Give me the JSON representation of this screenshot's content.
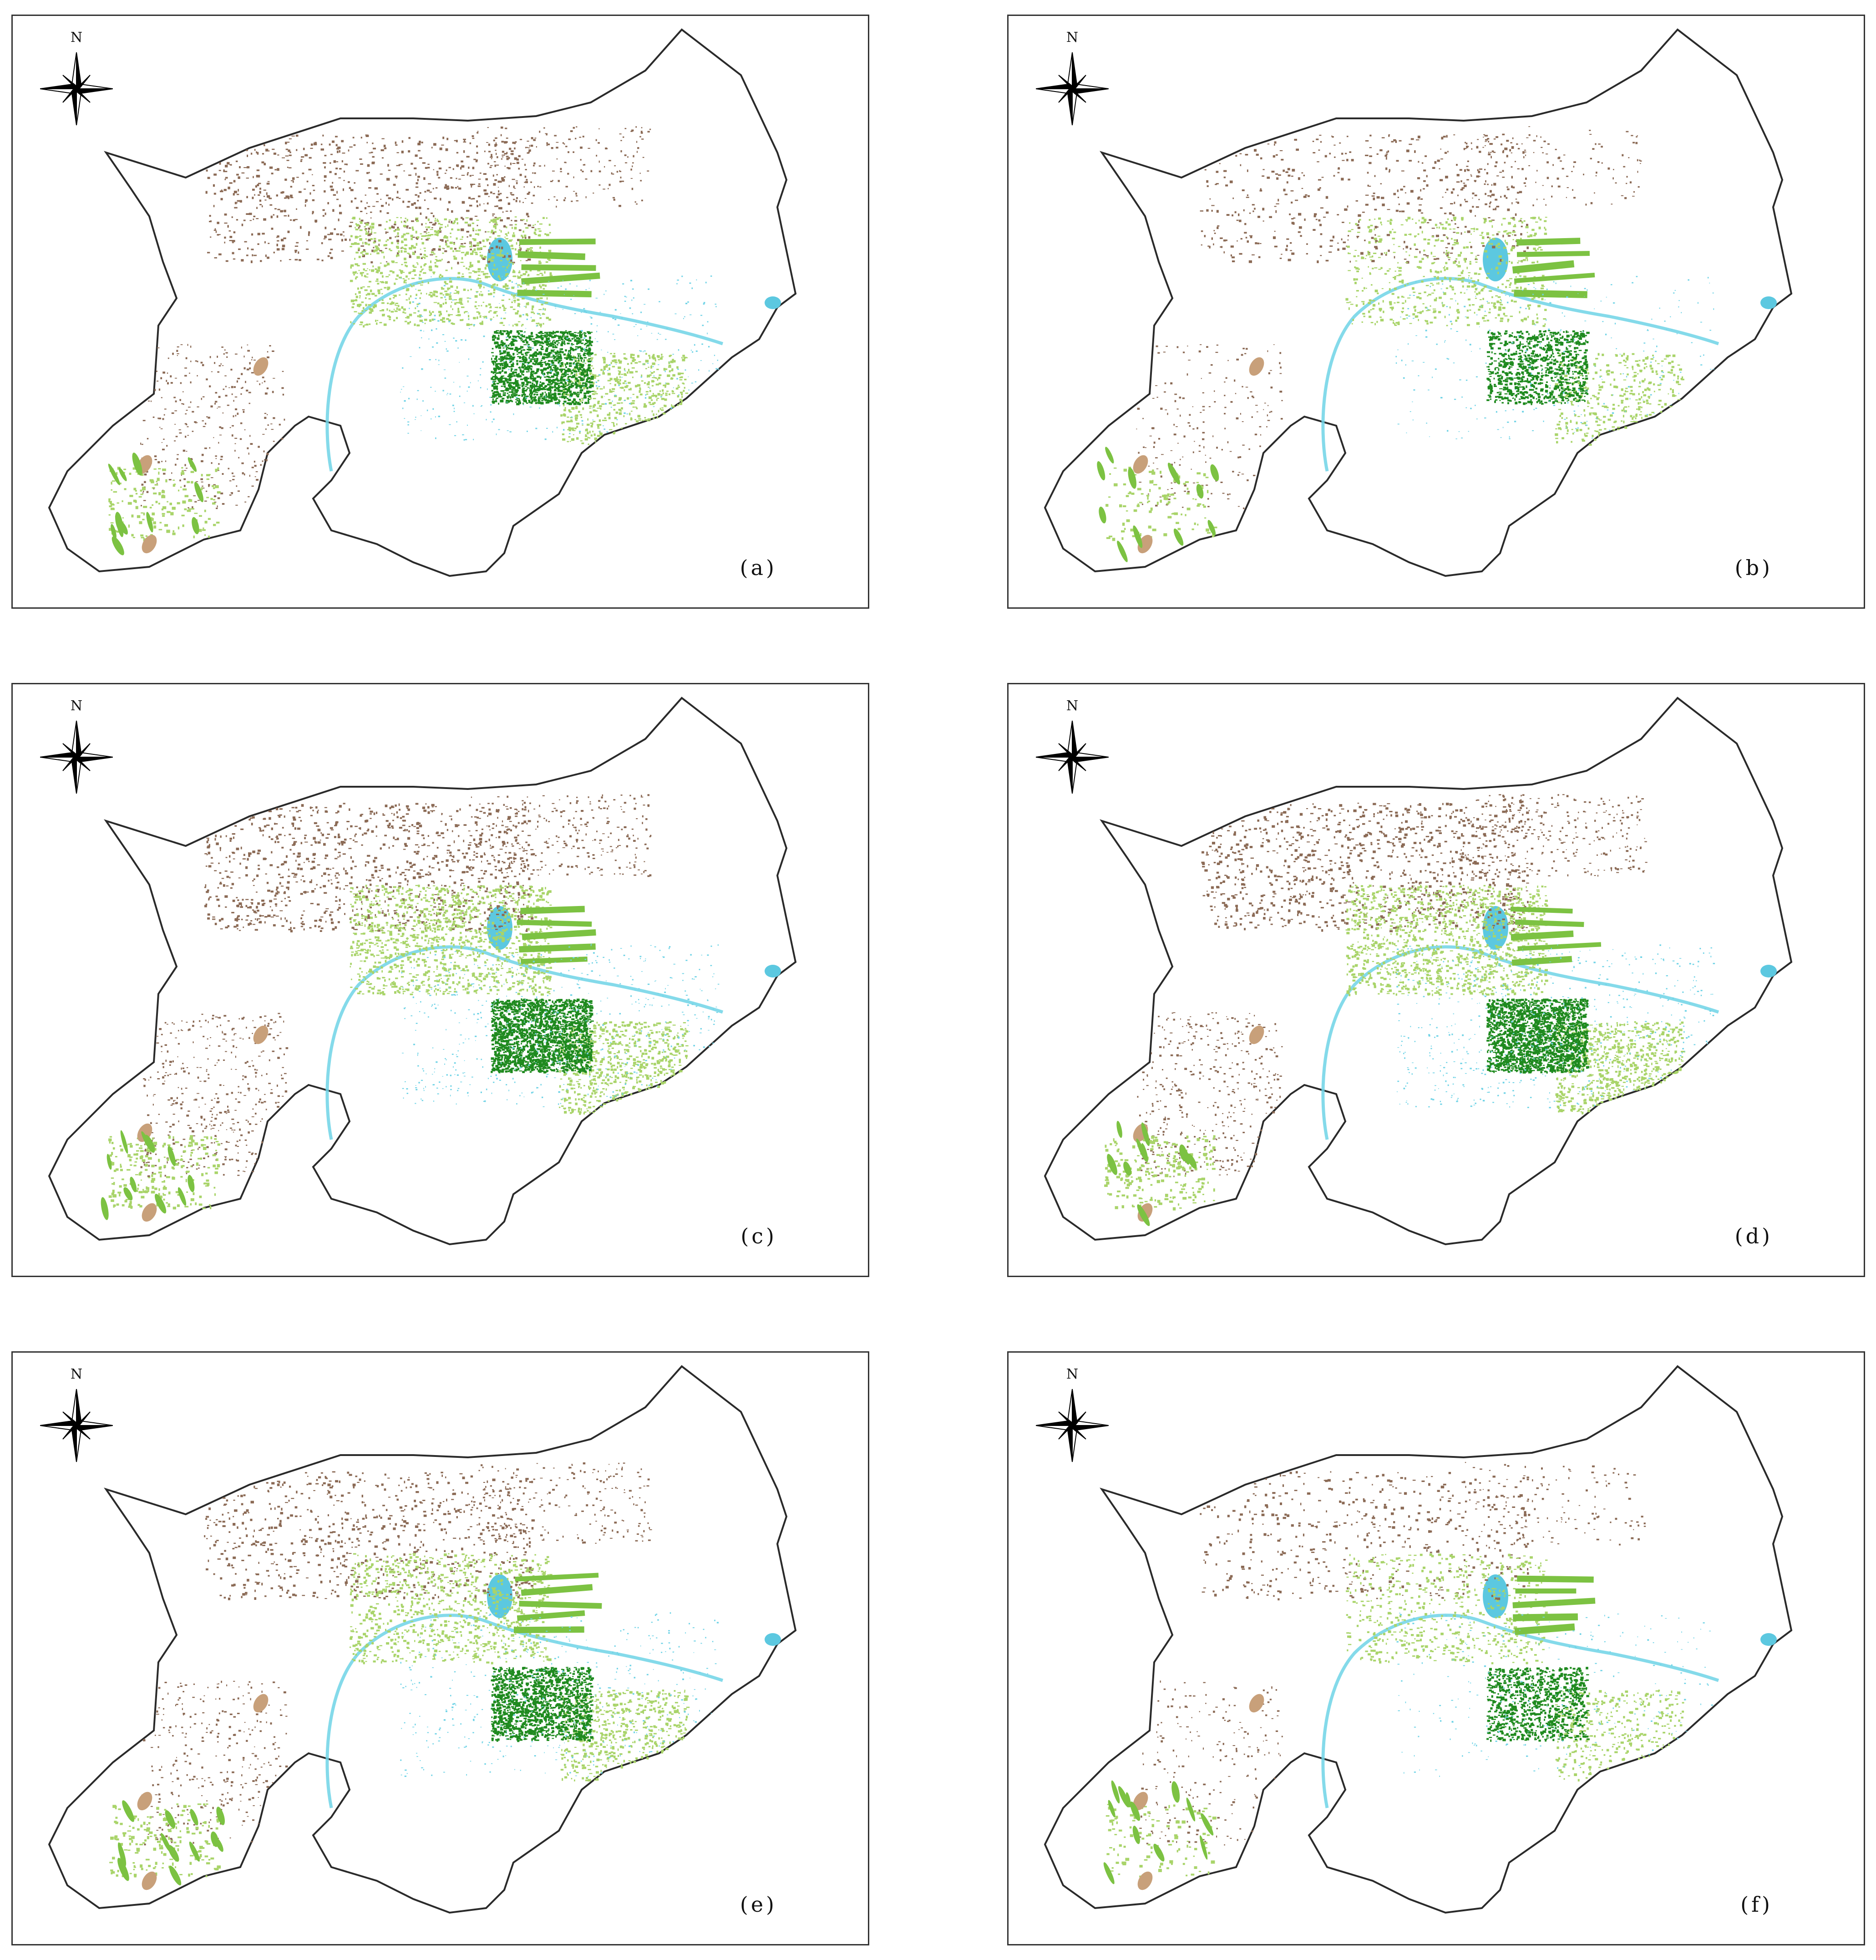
{
  "north_label": "N",
  "colors": {
    "boundary": "#2a2a2a",
    "water": "#6fd3e6",
    "lake": "#5cc8e0",
    "bare": "#8b6a55",
    "sand": "#c8a07a",
    "grass_light": "#a9d46a",
    "grass": "#7cc242",
    "forest": "#1f8a1f"
  },
  "panels": [
    {
      "label": "(a)",
      "density": "medium"
    },
    {
      "label": "(b)",
      "density": "light"
    },
    {
      "label": "(c)",
      "density": "high"
    },
    {
      "label": "(d)",
      "density": "high"
    },
    {
      "label": "(e)",
      "density": "medium"
    },
    {
      "label": "(f)",
      "density": "light"
    }
  ]
}
